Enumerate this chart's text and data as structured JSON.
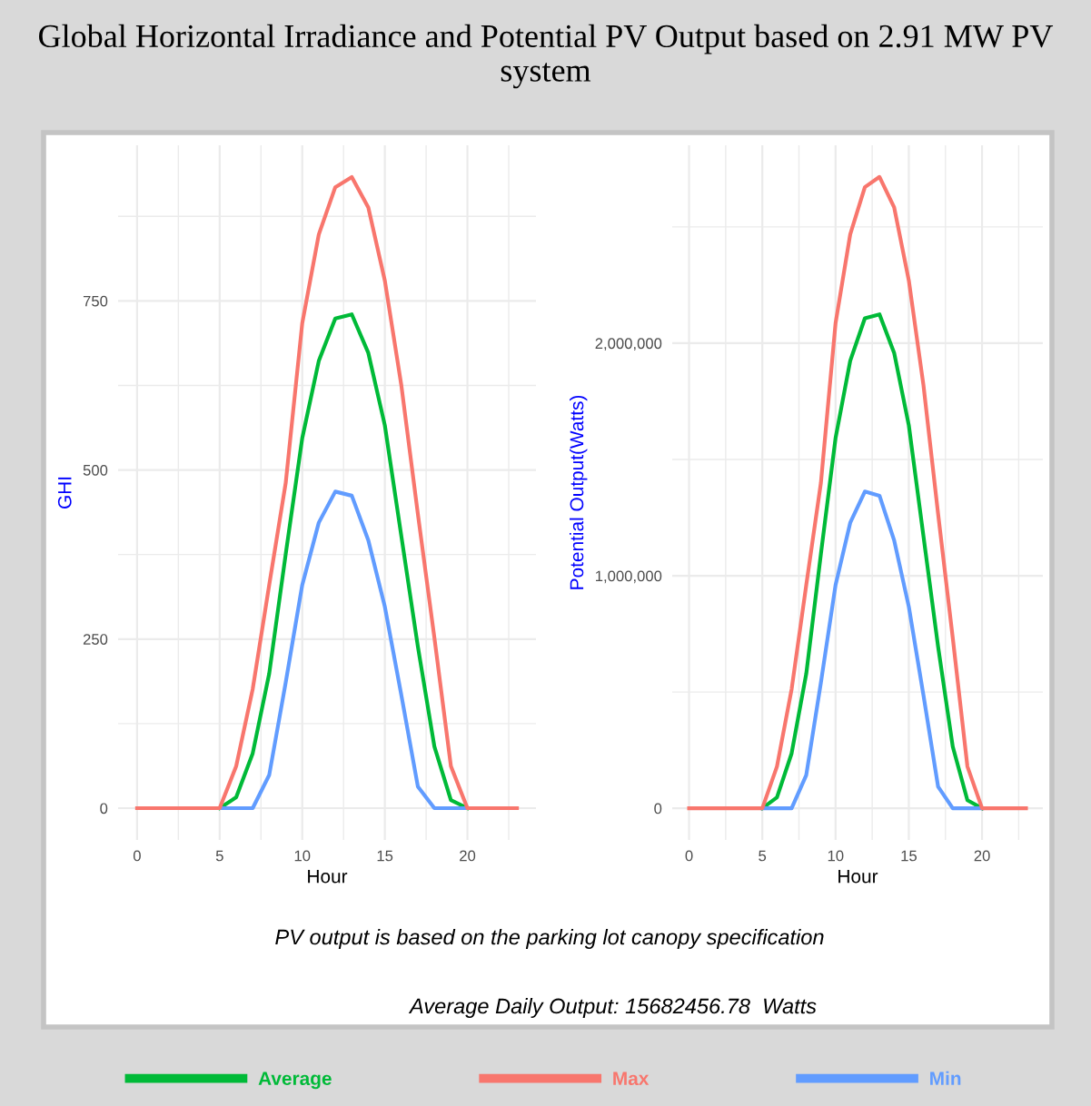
{
  "chart_data": [
    {
      "type": "line",
      "title": "Global Horizontal Irradiance and Potential PV Output based on 2.91 MW PV system",
      "xlabel": "Hour",
      "ylabel": "GHI",
      "annotations": [
        "PV output is based on the parking lot canopy specification",
        "Average Daily Output: 15682456.78  Watts"
      ],
      "x": [
        0,
        1,
        2,
        3,
        4,
        5,
        6,
        7,
        8,
        9,
        10,
        11,
        12,
        13,
        14,
        15,
        16,
        17,
        18,
        19,
        20,
        21,
        22,
        23
      ],
      "series": [
        {
          "name": "Average",
          "color": "#00ba38",
          "values": [
            null,
            null,
            null,
            null,
            null,
            0,
            16,
            81,
            199,
            376,
            547,
            661,
            724,
            730,
            673,
            566,
            402,
            239,
            91,
            12,
            0,
            null,
            null,
            null
          ]
        },
        {
          "name": "Max",
          "color": "#f8766d",
          "values": [
            0,
            0,
            0,
            0,
            0,
            0,
            62,
            176,
            330,
            481,
            717,
            848,
            918,
            933,
            888,
            780,
            625,
            435,
            252,
            62,
            0,
            0,
            0,
            0
          ]
        },
        {
          "name": "Min",
          "color": "#619cff",
          "values": [
            null,
            null,
            null,
            null,
            null,
            0,
            0,
            0,
            49,
            186,
            330,
            422,
            468,
            462,
            396,
            298,
            167,
            32,
            0,
            0,
            0,
            null,
            null,
            null
          ]
        }
      ],
      "xlim": [
        -1.15,
        24.15
      ],
      "xticks": [
        0,
        {
          "value": 2.5,
          "label": null
        },
        5,
        {
          "value": 7.5,
          "label": null
        },
        10,
        {
          "value": 12.5,
          "label": null
        },
        15,
        {
          "value": 17.5,
          "label": null
        },
        20,
        {
          "value": 22.5,
          "label": null
        }
      ],
      "ylim": [
        -47,
        980
      ],
      "yticks": [
        0,
        {
          "value": 125,
          "label": null
        },
        250,
        {
          "value": 375,
          "label": null
        },
        500,
        {
          "value": 625,
          "label": null
        },
        750,
        {
          "value": 875,
          "label": null
        }
      ],
      "grid": true,
      "legend": "bottom",
      "marker": "none",
      "line_style": "solid"
    },
    {
      "type": "line",
      "xlabel": "Hour",
      "ylabel": "Potential Output(Watts)",
      "x": [
        0,
        1,
        2,
        3,
        4,
        5,
        6,
        7,
        8,
        9,
        10,
        11,
        12,
        13,
        14,
        15,
        16,
        17,
        18,
        19,
        20,
        21,
        22,
        23
      ],
      "series": [
        {
          "color": "#00ba38",
          "values": [
            null,
            null,
            null,
            null,
            null,
            0,
            47000,
            236000,
            579000,
            1094000,
            1592000,
            1924000,
            2107000,
            2124000,
            1958000,
            1647000,
            1170000,
            695000,
            265000,
            35000,
            0,
            null,
            null,
            null
          ]
        },
        {
          "color": "#f8766d",
          "values": [
            0,
            0,
            0,
            0,
            0,
            0,
            180000,
            512000,
            960000,
            1400000,
            2086000,
            2468000,
            2671000,
            2715000,
            2584000,
            2270000,
            1819000,
            1266000,
            733000,
            180000,
            0,
            0,
            0,
            0
          ]
        },
        {
          "color": "#619cff",
          "values": [
            null,
            null,
            null,
            null,
            null,
            0,
            0,
            0,
            143000,
            541000,
            960000,
            1228000,
            1362000,
            1344000,
            1152000,
            867000,
            486000,
            93000,
            0,
            0,
            0,
            null,
            null,
            null
          ]
        }
      ],
      "xlim": [
        -1.15,
        24.15
      ],
      "xticks": [
        0,
        {
          "value": 2.5,
          "label": null
        },
        5,
        {
          "value": 7.5,
          "label": null
        },
        10,
        {
          "value": 12.5,
          "label": null
        },
        15,
        {
          "value": 17.5,
          "label": null
        },
        20,
        {
          "value": 22.5,
          "label": null
        }
      ],
      "ylim": [
        -136000,
        2851000
      ],
      "yticks": [
        0,
        {
          "value": 500000,
          "label": null
        },
        {
          "value": 1000000,
          "label": "1,000,000"
        },
        {
          "value": 1500000,
          "label": null
        },
        {
          "value": 2000000,
          "label": "2,000,000"
        },
        {
          "value": 2500000,
          "label": null
        }
      ],
      "grid": true,
      "marker": "none",
      "line_style": "solid"
    }
  ]
}
